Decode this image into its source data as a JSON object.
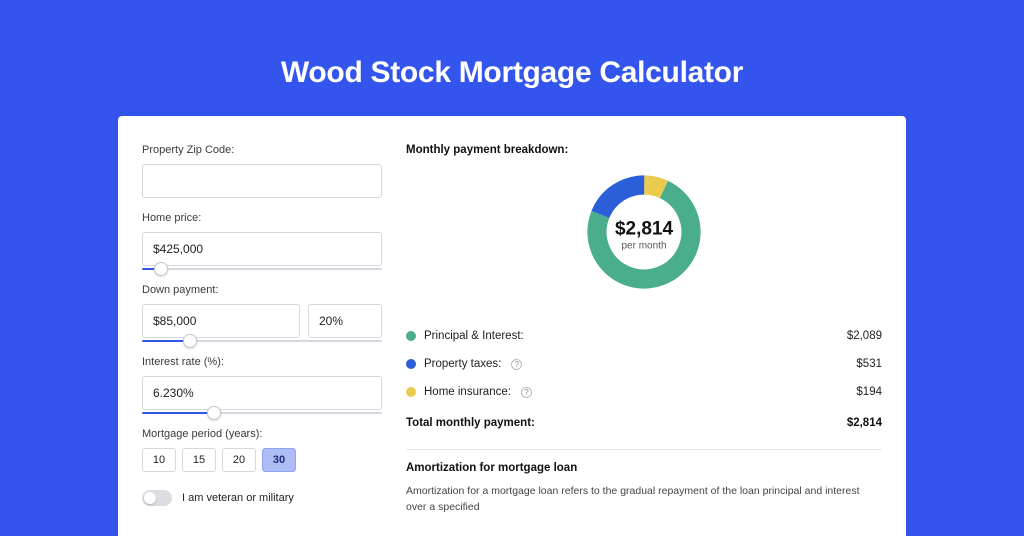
{
  "page": {
    "title": "Wood Stock Mortgage Calculator",
    "background_color": "#3355ee",
    "panel_color": "#ffffff"
  },
  "form": {
    "zip": {
      "label": "Property Zip Code:",
      "value": ""
    },
    "home_price": {
      "label": "Home price:",
      "value": "$425,000",
      "slider_percent": 8
    },
    "down_payment": {
      "label": "Down payment:",
      "amount": "$85,000",
      "percent": "20%",
      "slider_percent": 20
    },
    "interest_rate": {
      "label": "Interest rate (%):",
      "value": "6.230%",
      "slider_percent": 30
    },
    "mortgage_period": {
      "label": "Mortgage period (years):",
      "options": [
        "10",
        "15",
        "20",
        "30"
      ],
      "selected_index": 3
    },
    "veteran": {
      "label": "I am veteran or military",
      "checked": false
    }
  },
  "breakdown": {
    "title": "Monthly payment breakdown:",
    "donut": {
      "amount": "$2,814",
      "sub": "per month",
      "slices": [
        {
          "label": "Principal & Interest:",
          "value": "$2,089",
          "color": "#4aae8c",
          "percent": 74,
          "has_info": false
        },
        {
          "label": "Property taxes:",
          "value": "$531",
          "color": "#2b5fd9",
          "percent": 19,
          "has_info": true
        },
        {
          "label": "Home insurance:",
          "value": "$194",
          "color": "#eacb4e",
          "percent": 7,
          "has_info": true
        }
      ]
    },
    "total": {
      "label": "Total monthly payment:",
      "value": "$2,814"
    }
  },
  "amortization": {
    "title": "Amortization for mortgage loan",
    "text": "Amortization for a mortgage loan refers to the gradual repayment of the loan principal and interest over a specified"
  },
  "colors": {
    "accent": "#3355ee",
    "border": "#d5d7dc",
    "text": "#222222",
    "muted": "#8a8d96"
  }
}
